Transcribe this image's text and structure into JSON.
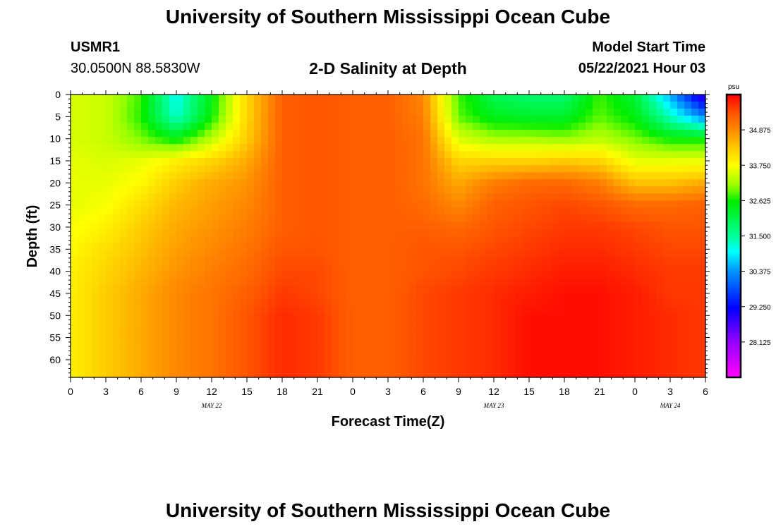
{
  "header": {
    "title": "University of Southern Mississippi Ocean Cube",
    "station": "USMR1",
    "coords": "30.0500N  88.5830W",
    "subtitle": "2-D Salinity at Depth",
    "model_start_label": "Model Start Time",
    "model_start_value": "05/22/2021 Hour 03"
  },
  "footer": {
    "title": "University of Southern Mississippi Ocean Cube"
  },
  "chart_data": {
    "type": "heatmap",
    "title": "2-D Salinity at Depth",
    "xlabel": "Forecast Time(Z)",
    "ylabel": "Depth (ft)",
    "x_range_hours": [
      0,
      54
    ],
    "y_range_ft": [
      0,
      64
    ],
    "x_tick_labels": [
      "0",
      "3",
      "6",
      "9",
      "12",
      "15",
      "18",
      "21",
      "0",
      "3",
      "6",
      "9",
      "12",
      "15",
      "18",
      "21",
      "0",
      "3",
      "6"
    ],
    "y_tick_labels": [
      "0",
      "5",
      "10",
      "15",
      "20",
      "25",
      "30",
      "35",
      "40",
      "45",
      "50",
      "55",
      "60"
    ],
    "date_labels": [
      {
        "text": "MAY 22",
        "hour": 12
      },
      {
        "text": "MAY 23",
        "hour": 36
      },
      {
        "text": "MAY 24",
        "hour": 51
      }
    ],
    "colorbar": {
      "unit": "psu",
      "min": 27.0,
      "max": 36.0,
      "labels": [
        "34.875",
        "33.750",
        "32.625",
        "31.500",
        "30.375",
        "29.250",
        "28.125"
      ],
      "stops": [
        {
          "v": 27.0,
          "color": "#ff00ff"
        },
        {
          "v": 28.1,
          "color": "#9900ff"
        },
        {
          "v": 29.2,
          "color": "#0000ff"
        },
        {
          "v": 30.4,
          "color": "#0099ff"
        },
        {
          "v": 31.0,
          "color": "#00ffff"
        },
        {
          "v": 31.5,
          "color": "#00ff99"
        },
        {
          "v": 32.6,
          "color": "#00ee00"
        },
        {
          "v": 33.1,
          "color": "#99ff00"
        },
        {
          "v": 33.75,
          "color": "#ffff00"
        },
        {
          "v": 34.3,
          "color": "#ffcc00"
        },
        {
          "v": 34.9,
          "color": "#ff8800"
        },
        {
          "v": 35.4,
          "color": "#ff5500"
        },
        {
          "v": 36.0,
          "color": "#ff0000"
        }
      ]
    },
    "salinity_grid": {
      "unit": "psu",
      "hours": [
        0,
        3,
        6,
        9,
        12,
        15,
        18,
        21,
        24,
        27,
        30,
        33,
        36,
        39,
        42,
        45,
        48,
        51,
        54
      ],
      "depths_ft": [
        0,
        5,
        10,
        15,
        20,
        25,
        30,
        35,
        40,
        45,
        50,
        55,
        60,
        64
      ],
      "values": [
        [
          33.5,
          33.4,
          32.8,
          31.0,
          32.5,
          34.2,
          35.3,
          35.4,
          35.3,
          35.3,
          34.9,
          32.8,
          32.0,
          31.8,
          31.8,
          32.8,
          32.2,
          30.5,
          28.6
        ],
        [
          33.5,
          33.4,
          32.7,
          31.2,
          32.6,
          34.2,
          35.3,
          35.4,
          35.3,
          35.3,
          35.0,
          32.9,
          32.4,
          32.3,
          32.3,
          32.9,
          32.5,
          31.3,
          30.2
        ],
        [
          33.5,
          33.4,
          33.0,
          32.5,
          33.3,
          34.3,
          35.3,
          35.4,
          35.3,
          35.3,
          35.1,
          33.5,
          33.2,
          33.2,
          33.1,
          33.3,
          33.0,
          32.6,
          32.6
        ],
        [
          33.6,
          33.5,
          33.6,
          33.9,
          34.2,
          34.6,
          35.3,
          35.4,
          35.3,
          35.3,
          35.1,
          34.2,
          34.2,
          34.2,
          34.3,
          34.2,
          33.6,
          33.6,
          33.6
        ],
        [
          33.6,
          33.6,
          33.8,
          34.3,
          34.6,
          34.8,
          35.3,
          35.4,
          35.3,
          35.3,
          35.1,
          34.6,
          35.0,
          35.2,
          35.2,
          35.0,
          34.4,
          34.4,
          34.6
        ],
        [
          33.6,
          33.7,
          34.1,
          34.5,
          34.7,
          34.9,
          35.3,
          35.4,
          35.3,
          35.3,
          35.2,
          34.9,
          35.3,
          35.4,
          35.5,
          35.4,
          35.2,
          35.2,
          35.3
        ],
        [
          33.7,
          33.9,
          34.3,
          34.6,
          34.8,
          35.0,
          35.3,
          35.4,
          35.3,
          35.3,
          35.3,
          35.2,
          35.4,
          35.5,
          35.6,
          35.6,
          35.5,
          35.4,
          35.4
        ],
        [
          33.8,
          34.1,
          34.4,
          34.7,
          34.9,
          35.1,
          35.4,
          35.4,
          35.3,
          35.3,
          35.4,
          35.4,
          35.5,
          35.6,
          35.7,
          35.7,
          35.6,
          35.5,
          35.5
        ],
        [
          33.9,
          34.2,
          34.5,
          34.8,
          35.0,
          35.2,
          35.5,
          35.5,
          35.3,
          35.3,
          35.4,
          35.5,
          35.6,
          35.7,
          35.8,
          35.8,
          35.7,
          35.6,
          35.6
        ],
        [
          33.9,
          34.3,
          34.6,
          34.9,
          35.1,
          35.3,
          35.6,
          35.5,
          35.3,
          35.3,
          35.5,
          35.6,
          35.7,
          35.8,
          35.9,
          35.9,
          35.8,
          35.6,
          35.6
        ],
        [
          33.9,
          34.3,
          34.6,
          34.9,
          35.1,
          35.4,
          35.7,
          35.6,
          35.3,
          35.3,
          35.5,
          35.6,
          35.7,
          35.9,
          35.9,
          35.9,
          35.8,
          35.7,
          35.6
        ],
        [
          33.9,
          34.3,
          34.6,
          34.9,
          35.1,
          35.4,
          35.7,
          35.6,
          35.3,
          35.3,
          35.5,
          35.6,
          35.7,
          35.9,
          35.9,
          35.9,
          35.8,
          35.7,
          35.6
        ],
        [
          33.9,
          34.3,
          34.6,
          34.9,
          35.1,
          35.4,
          35.7,
          35.6,
          35.3,
          35.3,
          35.5,
          35.6,
          35.7,
          35.9,
          35.9,
          35.9,
          35.8,
          35.7,
          35.6
        ],
        [
          33.9,
          34.3,
          34.6,
          34.9,
          35.1,
          35.4,
          35.7,
          35.6,
          35.3,
          35.3,
          35.5,
          35.6,
          35.7,
          35.9,
          35.9,
          35.9,
          35.8,
          35.7,
          35.6
        ]
      ]
    }
  }
}
